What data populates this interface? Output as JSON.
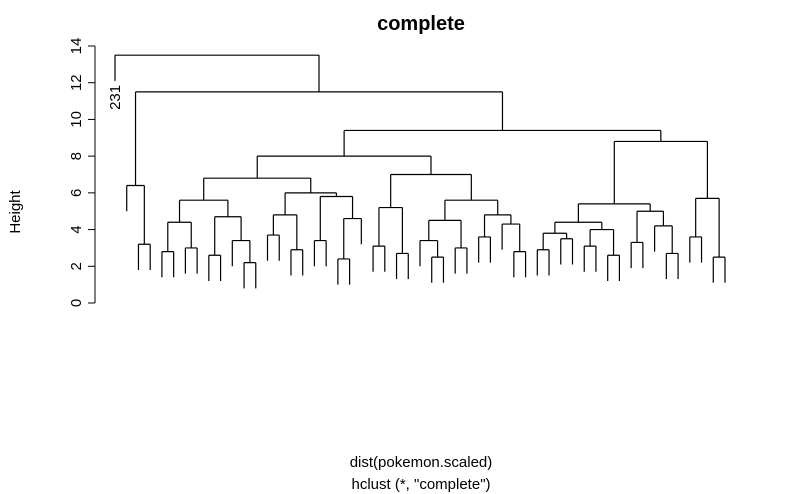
{
  "chart_data": {
    "type": "dendrogram",
    "title": "complete",
    "y_label": "Height",
    "x_label": "dist(pokemon.scaled)",
    "subtitle": "hclust (*, \"complete\")",
    "ylim": [
      0,
      14
    ],
    "yticks": [
      0,
      2,
      4,
      6,
      8,
      10,
      12,
      14
    ],
    "color": "#000000",
    "tree": {
      "height": 13.5,
      "children": [
        {
          "label": "231"
        },
        {
          "height": 11.5,
          "children": [
            {
              "height": 6.4,
              "children": [
                {
                  "label": null
                },
                {
                  "height": 3.2,
                  "children": [
                    {
                      "label": null
                    },
                    {
                      "label": null
                    }
                  ]
                }
              ]
            },
            {
              "height": 9.4,
              "children": [
                {
                  "height": 8.0,
                  "children": [
                    {
                      "height": 6.8,
                      "children": [
                        {
                          "height": 5.6,
                          "children": [
                            {
                              "height": 4.4,
                              "children": [
                                {
                                  "height": 2.8,
                                  "children": [
                                    {
                                      "label": null
                                    },
                                    {
                                      "label": null
                                    }
                                  ]
                                },
                                {
                                  "height": 3.0,
                                  "children": [
                                    {
                                      "label": null
                                    },
                                    {
                                      "label": null
                                    }
                                  ]
                                }
                              ]
                            },
                            {
                              "height": 4.7,
                              "children": [
                                {
                                  "height": 2.6,
                                  "children": [
                                    {
                                      "label": null
                                    },
                                    {
                                      "label": null
                                    }
                                  ]
                                },
                                {
                                  "height": 3.4,
                                  "children": [
                                    {
                                      "label": null
                                    },
                                    {
                                      "height": 2.2,
                                      "children": [
                                        {
                                          "label": null
                                        },
                                        {
                                          "label": null
                                        }
                                      ]
                                    }
                                  ]
                                }
                              ]
                            }
                          ]
                        },
                        {
                          "height": 6.0,
                          "children": [
                            {
                              "height": 4.8,
                              "children": [
                                {
                                  "height": 3.7,
                                  "children": [
                                    {
                                      "label": null
                                    },
                                    {
                                      "label": null
                                    }
                                  ]
                                },
                                {
                                  "height": 2.9,
                                  "children": [
                                    {
                                      "label": null
                                    },
                                    {
                                      "label": null
                                    }
                                  ]
                                }
                              ]
                            },
                            {
                              "height": 5.8,
                              "children": [
                                {
                                  "height": 3.4,
                                  "children": [
                                    {
                                      "label": null
                                    },
                                    {
                                      "label": null
                                    }
                                  ]
                                },
                                {
                                  "height": 4.6,
                                  "children": [
                                    {
                                      "height": 2.4,
                                      "children": [
                                        {
                                          "label": null
                                        },
                                        {
                                          "label": null
                                        }
                                      ]
                                    },
                                    {
                                      "label": null
                                    }
                                  ]
                                }
                              ]
                            }
                          ]
                        }
                      ]
                    },
                    {
                      "height": 7.0,
                      "children": [
                        {
                          "height": 5.2,
                          "children": [
                            {
                              "height": 3.1,
                              "children": [
                                {
                                  "label": null
                                },
                                {
                                  "label": null
                                }
                              ]
                            },
                            {
                              "height": 2.7,
                              "children": [
                                {
                                  "label": null
                                },
                                {
                                  "label": null
                                }
                              ]
                            }
                          ]
                        },
                        {
                          "height": 5.6,
                          "children": [
                            {
                              "height": 4.5,
                              "children": [
                                {
                                  "height": 3.4,
                                  "children": [
                                    {
                                      "label": null
                                    },
                                    {
                                      "height": 2.5,
                                      "children": [
                                        {
                                          "label": null
                                        },
                                        {
                                          "label": null
                                        }
                                      ]
                                    }
                                  ]
                                },
                                {
                                  "height": 3.0,
                                  "children": [
                                    {
                                      "label": null
                                    },
                                    {
                                      "label": null
                                    }
                                  ]
                                }
                              ]
                            },
                            {
                              "height": 4.8,
                              "children": [
                                {
                                  "height": 3.6,
                                  "children": [
                                    {
                                      "label": null
                                    },
                                    {
                                      "label": null
                                    }
                                  ]
                                },
                                {
                                  "height": 4.3,
                                  "children": [
                                    {
                                      "label": null
                                    },
                                    {
                                      "height": 2.8,
                                      "children": [
                                        {
                                          "label": null
                                        },
                                        {
                                          "label": null
                                        }
                                      ]
                                    }
                                  ]
                                }
                              ]
                            }
                          ]
                        }
                      ]
                    }
                  ]
                },
                {
                  "height": 8.8,
                  "children": [
                    {
                      "height": 5.4,
                      "children": [
                        {
                          "height": 4.4,
                          "children": [
                            {
                              "height": 3.8,
                              "children": [
                                {
                                  "height": 2.9,
                                  "children": [
                                    {
                                      "label": null
                                    },
                                    {
                                      "label": null
                                    }
                                  ]
                                },
                                {
                                  "height": 3.5,
                                  "children": [
                                    {
                                      "label": null
                                    },
                                    {
                                      "label": null
                                    }
                                  ]
                                }
                              ]
                            },
                            {
                              "height": 4.0,
                              "children": [
                                {
                                  "height": 3.1,
                                  "children": [
                                    {
                                      "label": null
                                    },
                                    {
                                      "label": null
                                    }
                                  ]
                                },
                                {
                                  "height": 2.6,
                                  "children": [
                                    {
                                      "label": null
                                    },
                                    {
                                      "label": null
                                    }
                                  ]
                                }
                              ]
                            }
                          ]
                        },
                        {
                          "height": 5.0,
                          "children": [
                            {
                              "height": 3.3,
                              "children": [
                                {
                                  "label": null
                                },
                                {
                                  "label": null
                                }
                              ]
                            },
                            {
                              "height": 4.2,
                              "children": [
                                {
                                  "label": null
                                },
                                {
                                  "height": 2.7,
                                  "children": [
                                    {
                                      "label": null
                                    },
                                    {
                                      "label": null
                                    }
                                  ]
                                }
                              ]
                            }
                          ]
                        }
                      ]
                    },
                    {
                      "height": 5.7,
                      "children": [
                        {
                          "height": 3.6,
                          "children": [
                            {
                              "label": null
                            },
                            {
                              "label": null
                            }
                          ]
                        },
                        {
                          "height": 2.5,
                          "children": [
                            {
                              "label": null
                            },
                            {
                              "label": null
                            }
                          ]
                        }
                      ]
                    }
                  ]
                }
              ]
            }
          ]
        }
      ]
    }
  }
}
